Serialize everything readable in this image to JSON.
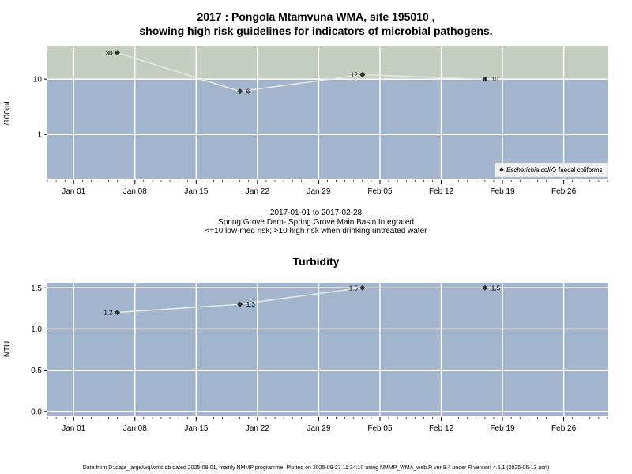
{
  "header": {
    "title_line1": "2017 : Pongola Mtamvuna WMA, site 195010 ,",
    "title_line2": "showing high risk guidelines for indicators of microbial pathogens."
  },
  "middle": {
    "line1": "2017-01-01 to 2017-02-28",
    "line2": "Spring Grove Dam- Spring Grove Main Basin Integrated",
    "line3": "<=10 low-med risk; >10 high risk when drinking untreated water"
  },
  "footer": {
    "text": "Data from D:/data_large/wq/wms.db dated 2025-08-01, mainly NMMP programme. Plotted on 2025-09-27 11:34:10 using NMMP_WMA_web.R ver 9.4 under R version 4.5.1 (2025-06-13 ucrt)"
  },
  "colors": {
    "panel_blue": "#a3b5cc",
    "risk_band": "#c3cdc0",
    "grid": "#ffffff",
    "line": "#e6e6e6",
    "marker": "#333333"
  },
  "chart_data": [
    {
      "type": "line",
      "title": "",
      "ylabel": "/100mL",
      "xlabel": "",
      "x_ticks": [
        "Jan 01",
        "Jan 08",
        "Jan 15",
        "Jan 22",
        "Jan 29",
        "Feb 05",
        "Feb 12",
        "Feb 19",
        "Feb 26"
      ],
      "x_tick_dates": [
        "2017-01-01",
        "2017-01-08",
        "2017-01-15",
        "2017-01-22",
        "2017-01-29",
        "2017-02-05",
        "2017-02-12",
        "2017-02-19",
        "2017-02-26"
      ],
      "xlim": [
        "2016-12-29",
        "2017-03-03"
      ],
      "y_scale": "log",
      "y_ticks": [
        1,
        10
      ],
      "y_tick_labels": [
        "1",
        "10"
      ],
      "ylim": [
        0.16,
        40
      ],
      "high_risk_threshold": 10,
      "grid": true,
      "legend_position": "bottom-right",
      "series": [
        {
          "name": "Escherichia coli",
          "marker": "filled-diamond",
          "x": [
            "2017-01-06",
            "2017-01-20",
            "2017-02-03",
            "2017-02-17"
          ],
          "y": [
            30,
            6,
            12,
            10
          ],
          "labels": [
            "30",
            "6",
            "12",
            "10"
          ]
        },
        {
          "name": "faecal coliforms",
          "marker": "open-diamond",
          "x": [],
          "y": [],
          "labels": []
        }
      ]
    },
    {
      "type": "line",
      "title": "Turbidity",
      "ylabel": "NTU",
      "xlabel": "",
      "x_ticks": [
        "Jan 01",
        "Jan 08",
        "Jan 15",
        "Jan 22",
        "Jan 29",
        "Feb 05",
        "Feb 12",
        "Feb 19",
        "Feb 26"
      ],
      "x_tick_dates": [
        "2017-01-01",
        "2017-01-08",
        "2017-01-15",
        "2017-01-22",
        "2017-01-29",
        "2017-02-05",
        "2017-02-12",
        "2017-02-19",
        "2017-02-26"
      ],
      "xlim": [
        "2016-12-29",
        "2017-03-03"
      ],
      "y_scale": "linear",
      "y_ticks": [
        0.0,
        0.5,
        1.0,
        1.5
      ],
      "y_tick_labels": [
        "0.0",
        "0.5",
        "1.0",
        "1.5"
      ],
      "ylim": [
        -0.05,
        1.56
      ],
      "grid": true,
      "series": [
        {
          "name": "",
          "marker": "filled-diamond",
          "x": [
            "2017-01-06",
            "2017-01-20",
            "2017-02-03",
            "2017-02-17"
          ],
          "y": [
            1.2,
            1.3,
            1.5,
            1.5
          ],
          "labels": [
            "1.2",
            "1.3",
            "1.5",
            "1.5"
          ]
        }
      ]
    }
  ]
}
